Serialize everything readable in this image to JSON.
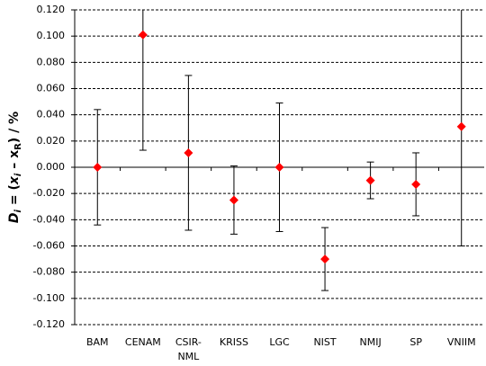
{
  "chart_data": {
    "type": "errorbar",
    "ylabel_parts": [
      "D",
      "i",
      " = (",
      "x",
      "i",
      " – x",
      "R",
      ") / %"
    ],
    "categories": [
      "BAM",
      "CENAM",
      "CSIR-NML",
      "KRISS",
      "LGC",
      "NIST",
      "NMIJ",
      "SP",
      "VNIIM"
    ],
    "series": [
      {
        "color": "#ff0000",
        "values": [
          0.0,
          0.101,
          0.011,
          -0.025,
          0.0,
          -0.07,
          -0.01,
          -0.013,
          0.031
        ],
        "errors": [
          0.044,
          0.088,
          0.059,
          0.026,
          0.049,
          0.024,
          0.014,
          0.024,
          0.091
        ]
      }
    ],
    "ylim": [
      -0.12,
      0.12
    ],
    "yticks": [
      {
        "value": -0.12,
        "label": "-0.120"
      },
      {
        "value": -0.1,
        "label": "-0.100"
      },
      {
        "value": -0.08,
        "label": "-0.080"
      },
      {
        "value": -0.06,
        "label": "-0.060"
      },
      {
        "value": -0.04,
        "label": "-0.040"
      },
      {
        "value": -0.02,
        "label": "-0.020"
      },
      {
        "value": 0,
        "label": "0.000"
      },
      {
        "value": 0.02,
        "label": "0.020"
      },
      {
        "value": 0.04,
        "label": "0.040"
      },
      {
        "value": 0.06,
        "label": "0.060"
      },
      {
        "value": 0.08,
        "label": "0.080"
      },
      {
        "value": 0.1,
        "label": "0.100"
      },
      {
        "value": 0.12,
        "label": "0.120"
      }
    ],
    "grid": true
  }
}
